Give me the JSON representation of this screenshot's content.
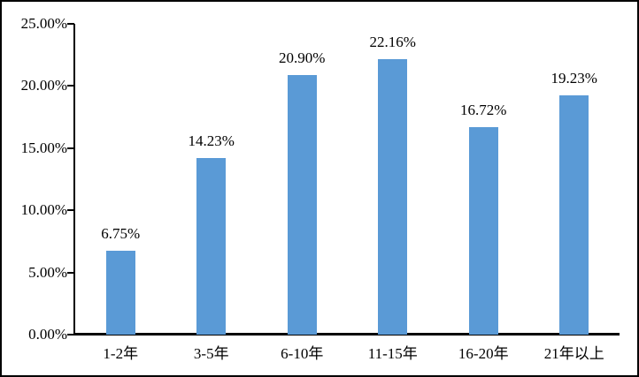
{
  "chart_data": {
    "type": "bar",
    "title": "",
    "xlabel": "",
    "ylabel": "",
    "categories": [
      "1-2年",
      "3-5年",
      "6-10年",
      "11-15年",
      "16-20年",
      "21年以上"
    ],
    "values": [
      6.75,
      14.23,
      20.9,
      22.16,
      16.72,
      19.23
    ],
    "value_labels": [
      "6.75%",
      "14.23%",
      "20.90%",
      "22.16%",
      "16.72%",
      "19.23%"
    ],
    "ylim": [
      0,
      25
    ],
    "y_ticks": [
      0,
      5,
      10,
      15,
      20,
      25
    ],
    "y_tick_labels": [
      "0.00%",
      "5.00%",
      "10.00%",
      "15.00%",
      "20.00%",
      "25.00%"
    ],
    "grid": "off",
    "legend": "none",
    "colors": {
      "bar": "#5A9AD6",
      "axis": "#000000",
      "text": "#000000",
      "background": "#FFFFFF"
    }
  }
}
